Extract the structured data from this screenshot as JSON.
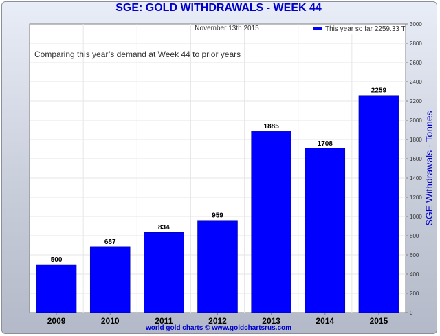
{
  "footer": "world gold charts © www.goldchartsrus.com",
  "chart_data": {
    "type": "bar",
    "title": "SGE: GOLD WITHDRAWALS - WEEK 44",
    "date": "November 13th 2015",
    "annotation": "Comparing this year’s demand at Week 44 to prior years",
    "legend": "This year so far 2259.33 T",
    "legend_position": "top-right",
    "ylabel": "SGE Withdrawals - Tonnes",
    "categories": [
      "2009",
      "2010",
      "2011",
      "2012",
      "2013",
      "2014",
      "2015"
    ],
    "values": [
      500,
      687,
      834,
      959,
      1885,
      1708,
      2259
    ],
    "ylim": [
      0,
      3000
    ],
    "yticks": [
      0,
      200,
      400,
      600,
      800,
      1000,
      1200,
      1400,
      1600,
      1800,
      2000,
      2200,
      2400,
      2600,
      2800,
      3000
    ],
    "bar_color": "#0000ff",
    "grid": true
  }
}
